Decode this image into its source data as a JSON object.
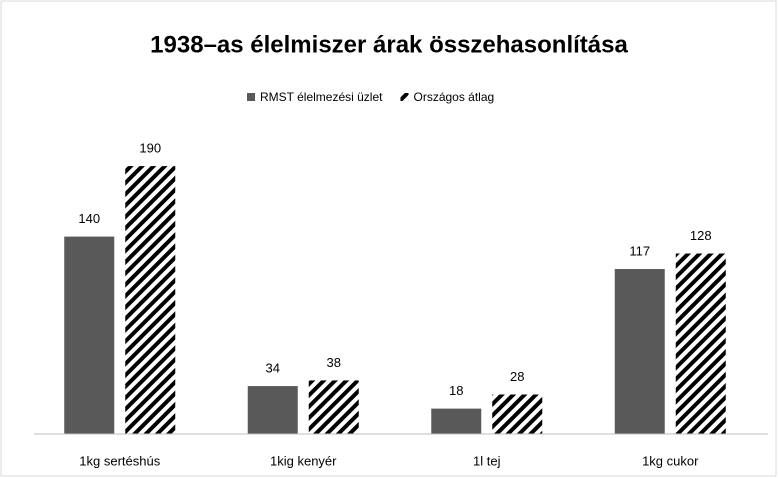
{
  "chart_data": {
    "type": "bar",
    "title": "1938–as élelmiszer árak összehasonlítása",
    "categories": [
      "1kg sertéshús",
      "1kig kenyér",
      "1l tej",
      "1kg cukor"
    ],
    "series": [
      {
        "name": "RMST élelmezési üzlet",
        "color": "#595959",
        "values": [
          140,
          34,
          18,
          117
        ]
      },
      {
        "name": "Országos átlag",
        "color": "#000000",
        "hatch": true,
        "values": [
          190,
          38,
          28,
          128
        ]
      }
    ],
    "ylim": [
      0,
      200
    ],
    "legend": "top"
  }
}
